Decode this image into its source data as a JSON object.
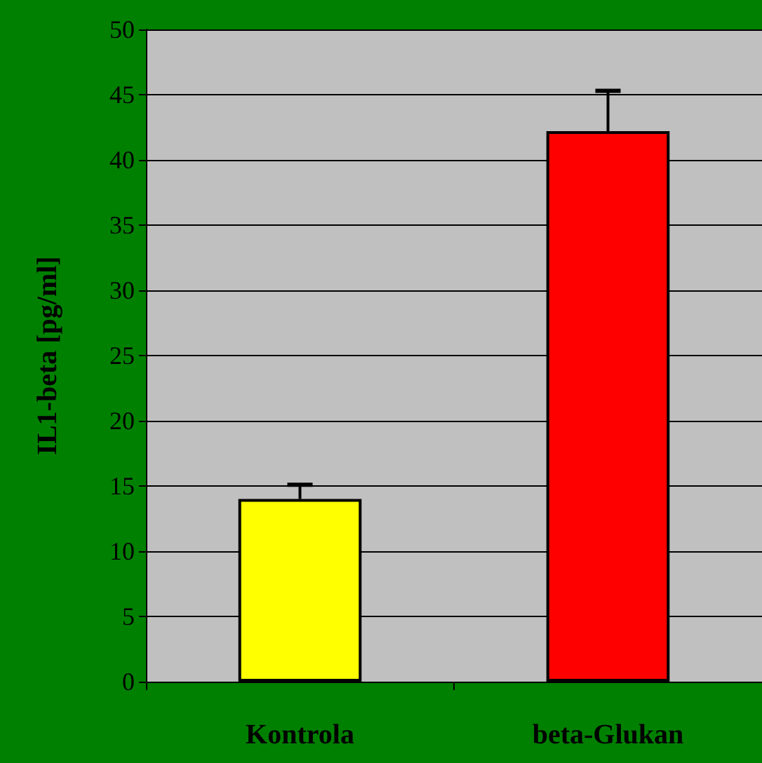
{
  "chart_data": {
    "type": "bar",
    "ylabel": "IL1-beta [pg/ml]",
    "categories": [
      "Kontrola",
      "beta-Glukan"
    ],
    "values": [
      14,
      42.2
    ],
    "colors": [
      "#ffff00",
      "#ff0000"
    ],
    "errors": [
      [
        14,
        15.1
      ],
      [
        42.2,
        45.3
      ]
    ],
    "ylim": [
      0,
      50
    ],
    "yticks": [
      0,
      5,
      10,
      15,
      20,
      25,
      30,
      35,
      40,
      45,
      50
    ],
    "grid": "y"
  }
}
